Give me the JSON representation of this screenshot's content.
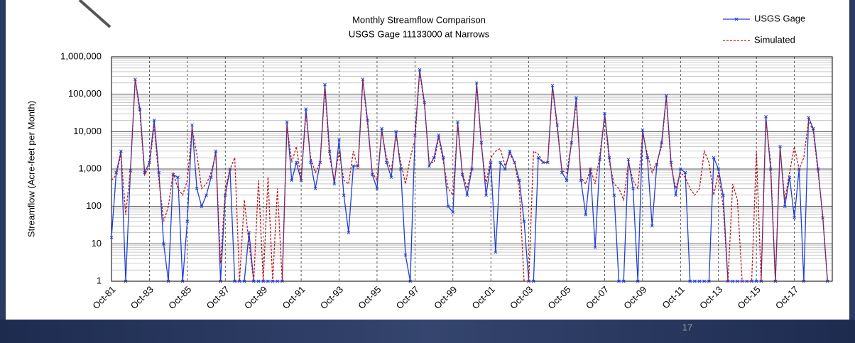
{
  "chart_data": {
    "type": "line",
    "title": "Monthly Streamflow Comparison",
    "subtitle": "USGS Gage 11133000 at Narrows",
    "ylabel": "Streamflow (Acre-feet per Month)",
    "log_y": true,
    "grid": true,
    "legend_position": "upper right",
    "xlim": [
      0,
      456
    ],
    "xticks": [
      {
        "value": 0,
        "label": "Oct-81"
      },
      {
        "value": 24,
        "label": "Oct-83"
      },
      {
        "value": 48,
        "label": "Oct-85"
      },
      {
        "value": 72,
        "label": "Oct-87"
      },
      {
        "value": 96,
        "label": "Oct-89"
      },
      {
        "value": 120,
        "label": "Oct-91"
      },
      {
        "value": 144,
        "label": "Oct-93"
      },
      {
        "value": 168,
        "label": "Oct-95"
      },
      {
        "value": 192,
        "label": "Oct-97"
      },
      {
        "value": 216,
        "label": "Oct-99"
      },
      {
        "value": 240,
        "label": "Oct-01"
      },
      {
        "value": 264,
        "label": "Oct-03"
      },
      {
        "value": 288,
        "label": "Oct-05"
      },
      {
        "value": 312,
        "label": "Oct-07"
      },
      {
        "value": 336,
        "label": "Oct-09"
      },
      {
        "value": 360,
        "label": "Oct-11"
      },
      {
        "value": 384,
        "label": "Oct-13"
      },
      {
        "value": 408,
        "label": "Oct-15"
      },
      {
        "value": 432,
        "label": "Oct-17"
      }
    ],
    "ylim": [
      1,
      1000000
    ],
    "yticks": [
      1,
      10,
      100,
      {
        "value": 1000,
        "label": "1,000"
      },
      {
        "value": 10000,
        "label": "10,000"
      },
      {
        "value": 100000,
        "label": "100,000"
      },
      {
        "value": 1000000,
        "label": "1,000,000"
      }
    ],
    "x": [
      0,
      3,
      6,
      9,
      12,
      15,
      18,
      21,
      24,
      27,
      30,
      33,
      36,
      39,
      42,
      45,
      48,
      51,
      54,
      57,
      60,
      63,
      66,
      69,
      72,
      75,
      78,
      81,
      84,
      87,
      90,
      93,
      96,
      99,
      102,
      105,
      108,
      111,
      114,
      117,
      120,
      123,
      126,
      129,
      132,
      135,
      138,
      141,
      144,
      147,
      150,
      153,
      156,
      159,
      162,
      165,
      168,
      171,
      174,
      177,
      180,
      183,
      186,
      189,
      192,
      195,
      198,
      201,
      204,
      207,
      210,
      213,
      216,
      219,
      222,
      225,
      228,
      231,
      234,
      237,
      240,
      243,
      246,
      249,
      252,
      255,
      258,
      261,
      264,
      267,
      270,
      273,
      276,
      279,
      282,
      285,
      288,
      291,
      294,
      297,
      300,
      303,
      306,
      309,
      312,
      315,
      318,
      321,
      324,
      327,
      330,
      333,
      336,
      339,
      342,
      345,
      348,
      351,
      354,
      357,
      360,
      363,
      366,
      369,
      372,
      375,
      378,
      381,
      384,
      387,
      390,
      393,
      396,
      399,
      402,
      405,
      408,
      411,
      414,
      417,
      420,
      423,
      426,
      429,
      432,
      435,
      438,
      441,
      444,
      447,
      450,
      453
    ],
    "series": [
      {
        "name": "USGS Gage",
        "color": "#1f3fd6",
        "line_style": "solid",
        "markers": true,
        "values": [
          15,
          800,
          3000,
          1,
          900,
          250000,
          40000,
          800,
          1500,
          20000,
          800,
          10,
          1,
          700,
          600,
          1,
          40,
          15000,
          300,
          100,
          200,
          600,
          3000,
          1,
          200,
          1000,
          1,
          1,
          1,
          20,
          1,
          1,
          1,
          1,
          1,
          1,
          1,
          18000,
          500,
          1500,
          500,
          40000,
          1500,
          300,
          1500,
          180000,
          3000,
          400,
          6000,
          200,
          20,
          1200,
          1200,
          250000,
          20000,
          700,
          300,
          12000,
          1500,
          600,
          10000,
          1000,
          5,
          1,
          8000,
          450000,
          60000,
          1200,
          2000,
          8000,
          2000,
          100,
          70,
          18000,
          700,
          200,
          1000,
          200000,
          5000,
          200,
          1500,
          6,
          1500,
          1000,
          3000,
          1500,
          500,
          40,
          1,
          1,
          2000,
          1500,
          1500,
          170000,
          15000,
          800,
          500,
          5000,
          80000,
          500,
          60,
          1000,
          8,
          1800,
          30000,
          2000,
          200,
          1,
          1,
          1800,
          300,
          1,
          11000,
          2000,
          30,
          1300,
          5000,
          90000,
          1500,
          200,
          1000,
          800,
          1,
          1,
          1,
          1,
          1,
          2000,
          1000,
          200,
          1,
          1,
          1,
          1,
          1,
          1,
          1,
          1,
          25000,
          1000,
          1,
          4000,
          100,
          600,
          50,
          1000,
          1,
          24000,
          12000,
          1000,
          50,
          1
        ]
      },
      {
        "name": "Simulated",
        "color": "#c0161b",
        "line_style": "dashed",
        "markers": false,
        "values": [
          500,
          700,
          2500,
          60,
          1000,
          250000,
          30000,
          700,
          1200,
          15000,
          500,
          40,
          100,
          800,
          300,
          200,
          500,
          12000,
          2500,
          300,
          400,
          800,
          2500,
          3,
          300,
          1000,
          2000,
          1,
          150,
          10,
          1,
          500,
          1,
          600,
          1,
          300,
          1,
          15000,
          1500,
          4000,
          500,
          30000,
          2000,
          800,
          1500,
          150000,
          2000,
          500,
          3000,
          500,
          400,
          3000,
          1000,
          250000,
          15000,
          800,
          500,
          10000,
          2000,
          900,
          8000,
          1500,
          400,
          2000,
          6000,
          400000,
          50000,
          1500,
          1500,
          7000,
          1500,
          300,
          200,
          15000,
          800,
          300,
          1200,
          180000,
          4000,
          400,
          2000,
          3000,
          3500,
          1200,
          2500,
          1500,
          300,
          1,
          1,
          3000,
          2500,
          1500,
          1500,
          150000,
          12000,
          900,
          800,
          5000,
          60000,
          600,
          400,
          1000,
          400,
          2500,
          25000,
          1500,
          400,
          300,
          150,
          1500,
          500,
          300,
          9000,
          2500,
          800,
          1500,
          4000,
          80000,
          1200,
          300,
          800,
          600,
          300,
          200,
          300,
          3000,
          1500,
          200,
          800,
          100,
          1,
          400,
          150,
          1,
          1,
          1,
          3000,
          1,
          20000,
          1500,
          1,
          3500,
          150,
          800,
          4000,
          1000,
          2000,
          20000,
          10000,
          800,
          60,
          1
        ]
      }
    ]
  },
  "slide_number": "17"
}
